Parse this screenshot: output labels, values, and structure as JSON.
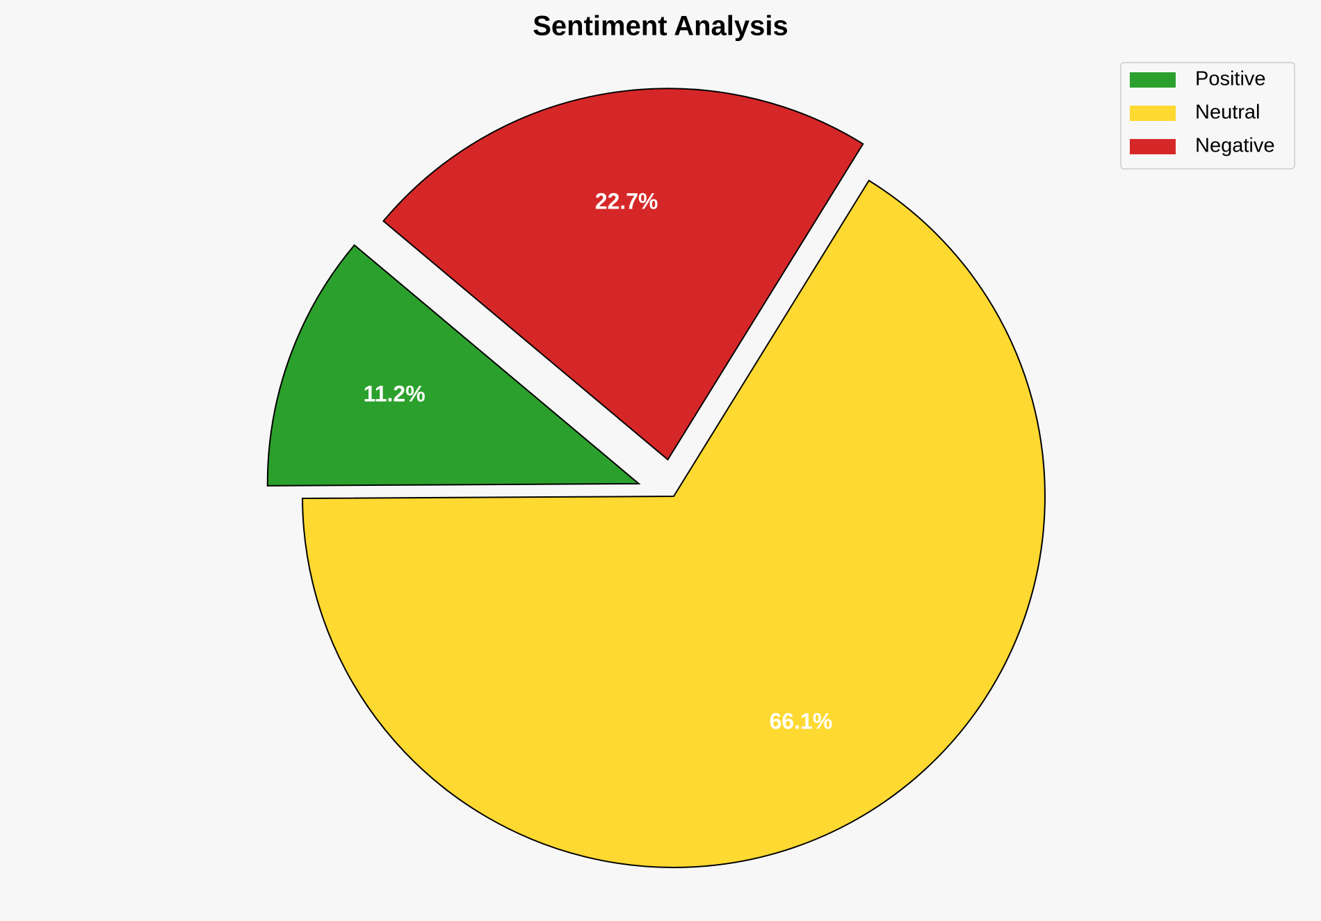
{
  "chart_data": {
    "type": "pie",
    "title": "Sentiment Analysis",
    "categories": [
      "Positive",
      "Neutral",
      "Negative"
    ],
    "values": [
      11.2,
      66.1,
      22.7
    ],
    "value_labels": [
      "11.2%",
      "66.1%",
      "22.7%"
    ],
    "colors": [
      "#2ca02c",
      "#fdd931",
      "#d62728"
    ],
    "explode": [
      0.1,
      0,
      0.1
    ],
    "start_angle": 140,
    "legend": "upper right"
  }
}
